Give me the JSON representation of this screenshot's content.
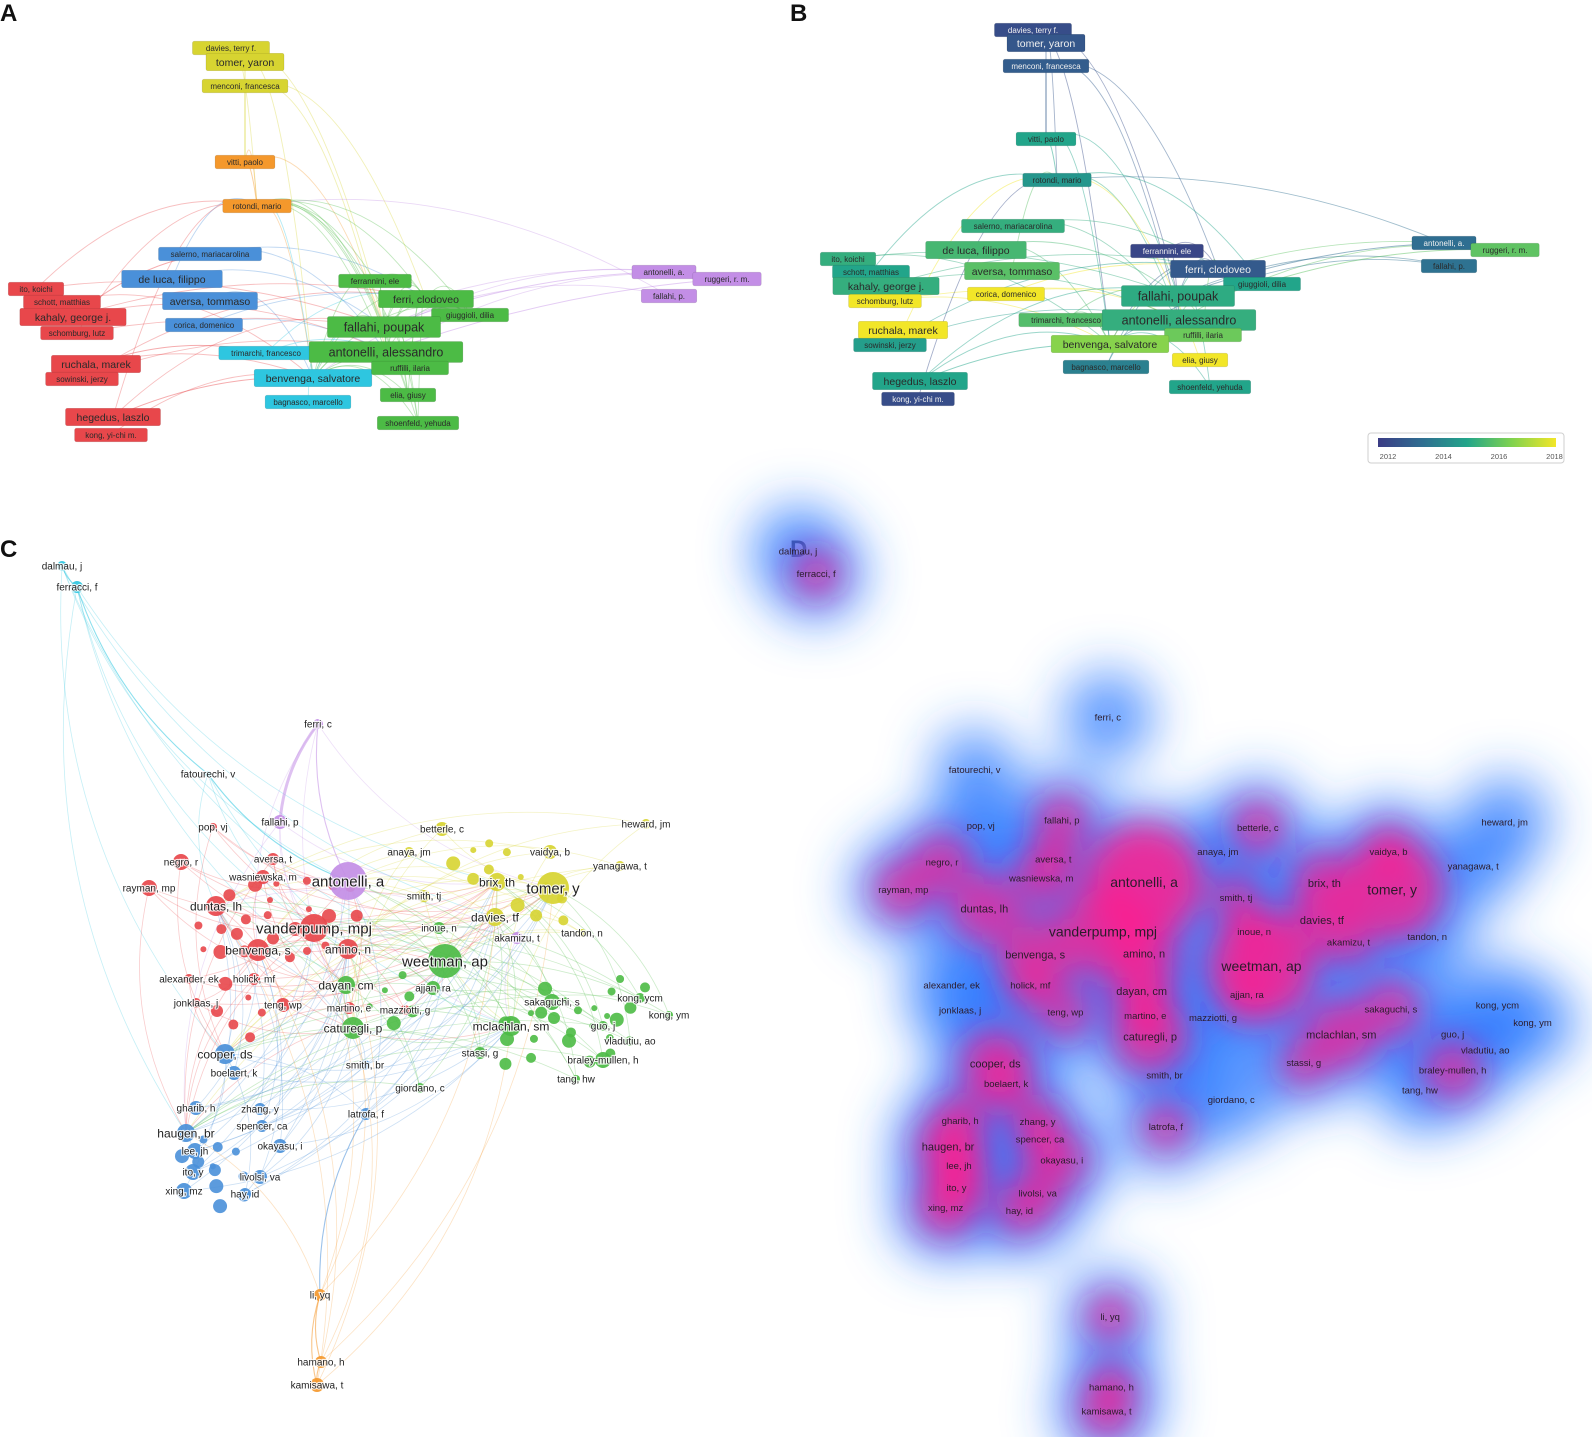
{
  "panels": {
    "a": {
      "letter": "A"
    },
    "b": {
      "letter": "B"
    },
    "c": {
      "letter": "C"
    },
    "d": {
      "letter": "D"
    }
  },
  "colors": {
    "red": "#e8474b",
    "blue": "#4a90d9",
    "cyan": "#2ec6e0",
    "green": "#4cbb45",
    "yellow": "#d7d431",
    "orange": "#f4982c",
    "purple": "#c38ee6",
    "heat_hot": "#ff1f8e",
    "heat_cool": "#2f7cff"
  },
  "panel_a_nodes": [
    {
      "label": "davies, terry f.",
      "cluster": "yellow",
      "size": "s"
    },
    {
      "label": "tomer, yaron",
      "cluster": "yellow",
      "size": "m"
    },
    {
      "label": "menconi, francesca",
      "cluster": "yellow",
      "size": "s"
    },
    {
      "label": "vitti, paolo",
      "cluster": "orange",
      "size": "s"
    },
    {
      "label": "rotondi, mario",
      "cluster": "orange",
      "size": "s"
    },
    {
      "label": "salerno, mariacarolina",
      "cluster": "blue",
      "size": "s"
    },
    {
      "label": "de luca, filippo",
      "cluster": "blue",
      "size": "m"
    },
    {
      "label": "aversa, tommaso",
      "cluster": "blue",
      "size": "m"
    },
    {
      "label": "corica, domenico",
      "cluster": "blue",
      "size": "s"
    },
    {
      "label": "ito, koichi",
      "cluster": "red",
      "size": "s"
    },
    {
      "label": "schott, matthias",
      "cluster": "red",
      "size": "s"
    },
    {
      "label": "kahaly, george j.",
      "cluster": "red",
      "size": "m"
    },
    {
      "label": "schomburg, lutz",
      "cluster": "red",
      "size": "s"
    },
    {
      "label": "ruchala, marek",
      "cluster": "red",
      "size": "m"
    },
    {
      "label": "sowinski, jerzy",
      "cluster": "red",
      "size": "s"
    },
    {
      "label": "hegedus, laszlo",
      "cluster": "red",
      "size": "m"
    },
    {
      "label": "kong, yi-chi m.",
      "cluster": "red",
      "size": "s"
    },
    {
      "label": "trimarchi, francesco",
      "cluster": "cyan",
      "size": "s"
    },
    {
      "label": "benvenga, salvatore",
      "cluster": "cyan",
      "size": "m"
    },
    {
      "label": "bagnasco, marcello",
      "cluster": "cyan",
      "size": "s"
    },
    {
      "label": "ferrannini, ele",
      "cluster": "green",
      "size": "s"
    },
    {
      "label": "ferri, clodoveo",
      "cluster": "green",
      "size": "m"
    },
    {
      "label": "giuggioli, dilia",
      "cluster": "green",
      "size": "s"
    },
    {
      "label": "fallahi, poupak",
      "cluster": "green",
      "size": "l"
    },
    {
      "label": "antonelli, alessandro",
      "cluster": "green",
      "size": "l"
    },
    {
      "label": "ruffilli, ilaria",
      "cluster": "green",
      "size": "s"
    },
    {
      "label": "elia, giusy",
      "cluster": "green",
      "size": "s"
    },
    {
      "label": "shoenfeld, yehuda",
      "cluster": "green",
      "size": "s"
    },
    {
      "label": "antonelli, a.",
      "cluster": "purple",
      "size": "s"
    },
    {
      "label": "ruggeri, r. m.",
      "cluster": "purple",
      "size": "s"
    },
    {
      "label": "fallahi, p.",
      "cluster": "purple",
      "size": "s"
    }
  ],
  "panel_b_nodes": [
    {
      "label": "davies, terry f.",
      "year": 2012.5,
      "size": "s"
    },
    {
      "label": "tomer, yaron",
      "year": 2012.8,
      "size": "m"
    },
    {
      "label": "menconi, francesca",
      "year": 2013.0,
      "size": "s"
    },
    {
      "label": "vitti, paolo",
      "year": 2015.0,
      "size": "s"
    },
    {
      "label": "rotondi, mario",
      "year": 2014.6,
      "size": "s"
    },
    {
      "label": "salerno, mariacarolina",
      "year": 2015.3,
      "size": "s"
    },
    {
      "label": "de luca, filippo",
      "year": 2015.6,
      "size": "m"
    },
    {
      "label": "aversa, tommaso",
      "year": 2015.9,
      "size": "m"
    },
    {
      "label": "corica, domenico",
      "year": 2018.0,
      "size": "s"
    },
    {
      "label": "ito, koichi",
      "year": 2015.3,
      "size": "s"
    },
    {
      "label": "schott, matthias",
      "year": 2015.0,
      "size": "s"
    },
    {
      "label": "kahaly, george j.",
      "year": 2015.3,
      "size": "m"
    },
    {
      "label": "schomburg, lutz",
      "year": 2018.0,
      "size": "s"
    },
    {
      "label": "ruchala, marek",
      "year": 2018.0,
      "size": "m"
    },
    {
      "label": "sowinski, jerzy",
      "year": 2014.8,
      "size": "s"
    },
    {
      "label": "hegedus, laszlo",
      "year": 2015.0,
      "size": "m"
    },
    {
      "label": "kong, yi-chi m.",
      "year": 2012.5,
      "size": "s"
    },
    {
      "label": "ferrannini, ele",
      "year": 2012.3,
      "size": "s"
    },
    {
      "label": "ferri, clodoveo",
      "year": 2012.9,
      "size": "m"
    },
    {
      "label": "giuggioli, dilia",
      "year": 2015.0,
      "size": "s"
    },
    {
      "label": "fallahi, poupak",
      "year": 2015.2,
      "size": "l"
    },
    {
      "label": "trimarchi, francesco",
      "year": 2015.8,
      "size": "s"
    },
    {
      "label": "antonelli, alessandro",
      "year": 2015.3,
      "size": "l"
    },
    {
      "label": "ruffilli, ilaria",
      "year": 2016.2,
      "size": "s"
    },
    {
      "label": "benvenga, salvatore",
      "year": 2016.6,
      "size": "m"
    },
    {
      "label": "elia, giusy",
      "year": 2018.0,
      "size": "s"
    },
    {
      "label": "bagnasco, marcello",
      "year": 2014.0,
      "size": "s"
    },
    {
      "label": "shoenfeld, yehuda",
      "year": 2015.0,
      "size": "s"
    },
    {
      "label": "antonelli, a.",
      "year": 2013.5,
      "size": "s"
    },
    {
      "label": "ruggeri, r. m.",
      "year": 2016.0,
      "size": "s"
    },
    {
      "label": "fallahi, p.",
      "year": 2013.6,
      "size": "s"
    }
  ],
  "colorbar": {
    "ticks": [
      "2012",
      "2014",
      "2016",
      "2018"
    ]
  },
  "panel_c_nodes": [
    {
      "label": "dalmau, j",
      "cluster": "cyan",
      "size": 5
    },
    {
      "label": "ferracci, f",
      "cluster": "cyan",
      "size": 6
    },
    {
      "label": "ferri, c",
      "cluster": "purple",
      "size": 5
    },
    {
      "label": "fatourechi, v",
      "cluster": "cyan",
      "size": 3
    },
    {
      "label": "pop, vj",
      "cluster": "red",
      "size": 4
    },
    {
      "label": "fallahi, p",
      "cluster": "purple",
      "size": 7
    },
    {
      "label": "betterle, c",
      "cluster": "yellow",
      "size": 7
    },
    {
      "label": "heward, jm",
      "cluster": "yellow",
      "size": 5
    },
    {
      "label": "negro, r",
      "cluster": "red",
      "size": 8
    },
    {
      "label": "aversa, t",
      "cluster": "red",
      "size": 6
    },
    {
      "label": "anaya, jm",
      "cluster": "yellow",
      "size": 5
    },
    {
      "label": "vaidya, b",
      "cluster": "yellow",
      "size": 7
    },
    {
      "label": "yanagawa, t",
      "cluster": "yellow",
      "size": 5
    },
    {
      "label": "rayman, mp",
      "cluster": "red",
      "size": 8
    },
    {
      "label": "wasniewska, m",
      "cluster": "red",
      "size": 7
    },
    {
      "label": "antonelli, a",
      "cluster": "purple",
      "size": 19
    },
    {
      "label": "brix, th",
      "cluster": "yellow",
      "size": 9
    },
    {
      "label": "tomer, y",
      "cluster": "yellow",
      "size": 16
    },
    {
      "label": "duntas, lh",
      "cluster": "red",
      "size": 10
    },
    {
      "label": "smith, tj",
      "cluster": "yellow",
      "size": 6
    },
    {
      "label": "davies, tf",
      "cluster": "yellow",
      "size": 9
    },
    {
      "label": "vanderpump, mpj",
      "cluster": "red",
      "size": 14
    },
    {
      "label": "inoue, n",
      "cluster": "green",
      "size": 6
    },
    {
      "label": "akamizu, t",
      "cluster": "purple",
      "size": 6
    },
    {
      "label": "tandon, n",
      "cluster": "yellow",
      "size": 4
    },
    {
      "label": "benvenga, s",
      "cluster": "red",
      "size": 11
    },
    {
      "label": "amino, n",
      "cluster": "red",
      "size": 10
    },
    {
      "label": "weetman, ap",
      "cluster": "green",
      "size": 17
    },
    {
      "label": "alexander, ek",
      "cluster": "red",
      "size": 5
    },
    {
      "label": "holick, mf",
      "cluster": "red",
      "size": 6
    },
    {
      "label": "dayan, cm",
      "cluster": "green",
      "size": 9
    },
    {
      "label": "ajjan, ra",
      "cluster": "green",
      "size": 7
    },
    {
      "label": "sakaguchi, s",
      "cluster": "green",
      "size": 8
    },
    {
      "label": "kong, ycm",
      "cluster": "green",
      "size": 5
    },
    {
      "label": "jonklaas, j",
      "cluster": "red",
      "size": 5
    },
    {
      "label": "teng, wp",
      "cluster": "red",
      "size": 7
    },
    {
      "label": "martino, e",
      "cluster": "red",
      "size": 6
    },
    {
      "label": "mazziotti, g",
      "cluster": "red",
      "size": 5
    },
    {
      "label": "kong, ym",
      "cluster": "green",
      "size": 4
    },
    {
      "label": "caturegli, p",
      "cluster": "green",
      "size": 11
    },
    {
      "label": "mclachlan, sm",
      "cluster": "green",
      "size": 10
    },
    {
      "label": "guo, j",
      "cluster": "green",
      "size": 5
    },
    {
      "label": "vladutiu, ao",
      "cluster": "green",
      "size": 5
    },
    {
      "label": "cooper, ds",
      "cluster": "blue",
      "size": 10
    },
    {
      "label": "stassi, g",
      "cluster": "green",
      "size": 6
    },
    {
      "label": "braley-mullen, h",
      "cluster": "green",
      "size": 8
    },
    {
      "label": "smith, br",
      "cluster": "blue",
      "size": 5
    },
    {
      "label": "boelaert, k",
      "cluster": "blue",
      "size": 7
    },
    {
      "label": "tang, hw",
      "cluster": "green",
      "size": 4
    },
    {
      "label": "giordano, c",
      "cluster": "green",
      "size": 5
    },
    {
      "label": "gharib, h",
      "cluster": "blue",
      "size": 7
    },
    {
      "label": "zhang, y",
      "cluster": "blue",
      "size": 6
    },
    {
      "label": "latrofa, f",
      "cluster": "blue",
      "size": 6
    },
    {
      "label": "haugen, br",
      "cluster": "blue",
      "size": 9
    },
    {
      "label": "spencer, ca",
      "cluster": "blue",
      "size": 6
    },
    {
      "label": "okayasu, i",
      "cluster": "blue",
      "size": 7
    },
    {
      "label": "lee, jh",
      "cluster": "blue",
      "size": 8
    },
    {
      "label": "ito, y",
      "cluster": "blue",
      "size": 8
    },
    {
      "label": "livolsi, va",
      "cluster": "blue",
      "size": 7
    },
    {
      "label": "xing, mz",
      "cluster": "blue",
      "size": 8
    },
    {
      "label": "hay, id",
      "cluster": "blue",
      "size": 6
    },
    {
      "label": "li, yq",
      "cluster": "orange",
      "size": 6
    },
    {
      "label": "hamano, h",
      "cluster": "orange",
      "size": 6
    },
    {
      "label": "kamisawa, t",
      "cluster": "orange",
      "size": 7
    }
  ]
}
